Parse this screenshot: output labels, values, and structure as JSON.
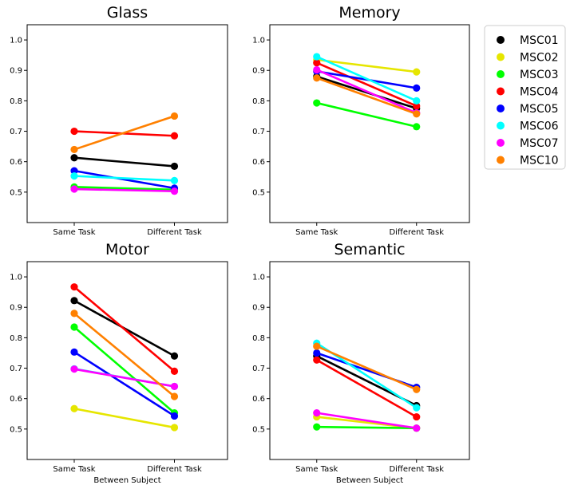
{
  "chart_data": [
    {
      "type": "line",
      "title": "Glass",
      "categories": [
        "Same Task",
        "Different Task"
      ],
      "xlabel": "",
      "ylim": [
        0.4,
        1.05
      ],
      "yticks": [
        "0.5",
        "0.6",
        "0.7",
        "0.8",
        "0.9",
        "1.0"
      ],
      "series": [
        {
          "name": "MSC01",
          "values": [
            0.613,
            0.585
          ]
        },
        {
          "name": "MSC02",
          "values": [
            0.515,
            0.505
          ]
        },
        {
          "name": "MSC03",
          "values": [
            0.517,
            0.508
          ]
        },
        {
          "name": "MSC04",
          "values": [
            0.7,
            0.685
          ]
        },
        {
          "name": "MSC05",
          "values": [
            0.57,
            0.513
          ]
        },
        {
          "name": "MSC06",
          "values": [
            0.553,
            0.538
          ]
        },
        {
          "name": "MSC07",
          "values": [
            0.51,
            0.503
          ]
        },
        {
          "name": "MSC10",
          "values": [
            0.64,
            0.75
          ]
        }
      ]
    },
    {
      "type": "line",
      "title": "Memory",
      "categories": [
        "Same Task",
        "Different Task"
      ],
      "xlabel": "",
      "ylim": [
        0.4,
        1.05
      ],
      "yticks": [
        "0.5",
        "0.6",
        "0.7",
        "0.8",
        "0.9",
        "1.0"
      ],
      "series": [
        {
          "name": "MSC01",
          "values": [
            0.88,
            0.775
          ]
        },
        {
          "name": "MSC02",
          "values": [
            0.935,
            0.895
          ]
        },
        {
          "name": "MSC03",
          "values": [
            0.793,
            0.715
          ]
        },
        {
          "name": "MSC04",
          "values": [
            0.925,
            0.783
          ]
        },
        {
          "name": "MSC05",
          "values": [
            0.897,
            0.842
          ]
        },
        {
          "name": "MSC06",
          "values": [
            0.945,
            0.8
          ]
        },
        {
          "name": "MSC07",
          "values": [
            0.902,
            0.76
          ]
        },
        {
          "name": "MSC10",
          "values": [
            0.875,
            0.757
          ]
        }
      ]
    },
    {
      "type": "line",
      "title": "Motor",
      "categories": [
        "Same Task",
        "Different Task"
      ],
      "xlabel": "Between Subject",
      "ylim": [
        0.4,
        1.05
      ],
      "yticks": [
        "0.5",
        "0.6",
        "0.7",
        "0.8",
        "0.9",
        "1.0"
      ],
      "series": [
        {
          "name": "MSC01",
          "values": [
            0.922,
            0.74
          ]
        },
        {
          "name": "MSC02",
          "values": [
            0.567,
            0.505
          ]
        },
        {
          "name": "MSC03",
          "values": [
            0.835,
            0.553
          ]
        },
        {
          "name": "MSC04",
          "values": [
            0.967,
            0.69
          ]
        },
        {
          "name": "MSC05",
          "values": [
            0.753,
            0.543
          ]
        },
        {
          "name": "MSC06",
          "values": [
            0.698,
            0.64
          ]
        },
        {
          "name": "MSC07",
          "values": [
            0.697,
            0.64
          ]
        },
        {
          "name": "MSC10",
          "values": [
            0.88,
            0.607
          ]
        }
      ]
    },
    {
      "type": "line",
      "title": "Semantic",
      "categories": [
        "Same Task",
        "Different Task"
      ],
      "xlabel": "Between Subject",
      "ylim": [
        0.4,
        1.05
      ],
      "yticks": [
        "0.5",
        "0.6",
        "0.7",
        "0.8",
        "0.9",
        "1.0"
      ],
      "series": [
        {
          "name": "MSC01",
          "values": [
            0.74,
            0.577
          ]
        },
        {
          "name": "MSC02",
          "values": [
            0.54,
            0.503
          ]
        },
        {
          "name": "MSC03",
          "values": [
            0.507,
            0.503
          ]
        },
        {
          "name": "MSC04",
          "values": [
            0.727,
            0.54
          ]
        },
        {
          "name": "MSC05",
          "values": [
            0.75,
            0.637
          ]
        },
        {
          "name": "MSC06",
          "values": [
            0.782,
            0.57
          ]
        },
        {
          "name": "MSC07",
          "values": [
            0.553,
            0.503
          ]
        },
        {
          "name": "MSC10",
          "values": [
            0.772,
            0.63
          ]
        }
      ]
    }
  ],
  "legend": {
    "placement": "right",
    "entries": [
      {
        "name": "MSC01",
        "color": "#000000"
      },
      {
        "name": "MSC02",
        "color": "#e6e600"
      },
      {
        "name": "MSC03",
        "color": "#00ff00"
      },
      {
        "name": "MSC04",
        "color": "#ff0000"
      },
      {
        "name": "MSC05",
        "color": "#0000ff"
      },
      {
        "name": "MSC06",
        "color": "#00ffff"
      },
      {
        "name": "MSC07",
        "color": "#ff00ff"
      },
      {
        "name": "MSC10",
        "color": "#ff8000"
      }
    ]
  }
}
